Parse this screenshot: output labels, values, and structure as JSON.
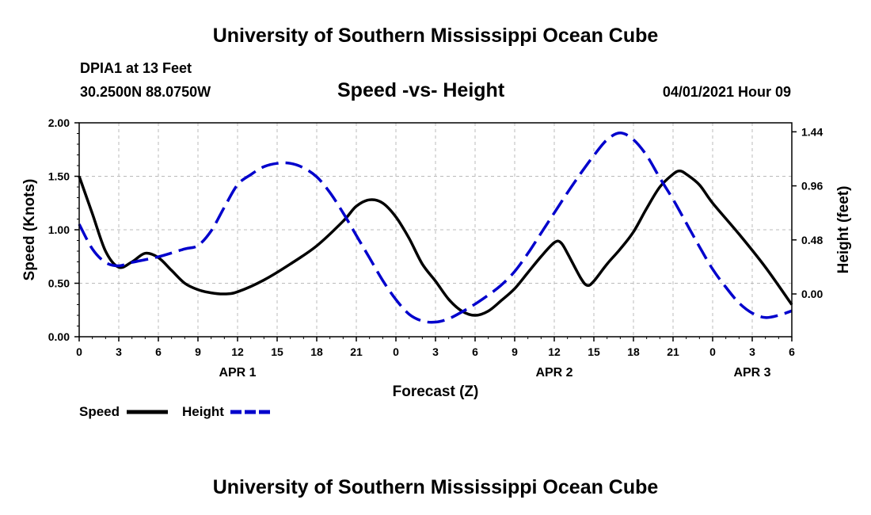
{
  "header": {
    "top_title": "University of Southern Mississippi Ocean Cube",
    "bottom_title": "University of Southern Mississippi Ocean Cube",
    "station": "DPIA1 at 13 Feet",
    "coords": "30.2500N  88.0750W",
    "subtitle": "Speed -vs- Height",
    "datetime": "04/01/2021 Hour 09"
  },
  "chart_data": {
    "type": "line",
    "xlabel": "Forecast (Z)",
    "ylabel_left": "Speed (Knots)",
    "ylabel_right": "Height (feet)",
    "x_hours_range": [
      0,
      54
    ],
    "x_tick_hours": [
      0,
      3,
      6,
      9,
      12,
      15,
      18,
      21,
      24,
      27,
      30,
      33,
      36,
      39,
      42,
      45,
      48,
      51,
      54
    ],
    "x_tick_labels": [
      "0",
      "3",
      "6",
      "9",
      "12",
      "15",
      "18",
      "21",
      "0",
      "3",
      "6",
      "9",
      "12",
      "15",
      "18",
      "21",
      "0",
      "3",
      "6"
    ],
    "date_labels": [
      {
        "label": "APR 1",
        "hour": 12
      },
      {
        "label": "APR 2",
        "hour": 36
      },
      {
        "label": "APR 3",
        "hour": 51
      }
    ],
    "ylim_left": [
      0.0,
      2.0
    ],
    "yticks_left": [
      "0.00",
      "0.50",
      "1.00",
      "1.50",
      "2.00"
    ],
    "yticks_left_values": [
      0.0,
      0.5,
      1.0,
      1.5,
      2.0
    ],
    "ylim_right": [
      -0.38,
      1.52
    ],
    "yticks_right": [
      "0.00",
      "0.48",
      "0.96",
      "1.44"
    ],
    "yticks_right_values": [
      0.0,
      0.48,
      0.96,
      1.44
    ],
    "grid": true,
    "legend": "bottom-left",
    "series": [
      {
        "name": "Speed",
        "axis": "left",
        "color": "#000000",
        "dash": "solid",
        "points": [
          [
            0,
            1.5
          ],
          [
            1,
            1.15
          ],
          [
            2,
            0.8
          ],
          [
            3,
            0.65
          ],
          [
            4,
            0.7
          ],
          [
            5,
            0.78
          ],
          [
            6,
            0.74
          ],
          [
            7,
            0.62
          ],
          [
            8,
            0.5
          ],
          [
            9,
            0.44
          ],
          [
            10,
            0.41
          ],
          [
            11,
            0.4
          ],
          [
            12,
            0.42
          ],
          [
            14,
            0.53
          ],
          [
            16,
            0.68
          ],
          [
            18,
            0.85
          ],
          [
            20,
            1.08
          ],
          [
            21,
            1.22
          ],
          [
            22,
            1.28
          ],
          [
            23,
            1.25
          ],
          [
            24,
            1.12
          ],
          [
            25,
            0.92
          ],
          [
            26,
            0.68
          ],
          [
            27,
            0.52
          ],
          [
            28,
            0.35
          ],
          [
            29,
            0.24
          ],
          [
            30,
            0.2
          ],
          [
            31,
            0.24
          ],
          [
            32,
            0.34
          ],
          [
            33,
            0.45
          ],
          [
            34,
            0.6
          ],
          [
            35,
            0.75
          ],
          [
            36,
            0.88
          ],
          [
            36.5,
            0.88
          ],
          [
            37,
            0.78
          ],
          [
            38,
            0.55
          ],
          [
            38.5,
            0.48
          ],
          [
            39,
            0.52
          ],
          [
            40,
            0.68
          ],
          [
            41,
            0.82
          ],
          [
            42,
            0.98
          ],
          [
            43,
            1.2
          ],
          [
            44,
            1.4
          ],
          [
            45,
            1.52
          ],
          [
            45.5,
            1.55
          ],
          [
            46,
            1.52
          ],
          [
            47,
            1.42
          ],
          [
            48,
            1.25
          ],
          [
            50,
            0.96
          ],
          [
            52,
            0.65
          ],
          [
            54,
            0.3
          ]
        ]
      },
      {
        "name": "Height",
        "axis": "right",
        "color": "#0000cc",
        "dash": "dashed",
        "points": [
          [
            0,
            0.62
          ],
          [
            1,
            0.4
          ],
          [
            2,
            0.28
          ],
          [
            3,
            0.25
          ],
          [
            4,
            0.28
          ],
          [
            6,
            0.33
          ],
          [
            8,
            0.4
          ],
          [
            9,
            0.43
          ],
          [
            10,
            0.56
          ],
          [
            11,
            0.77
          ],
          [
            12,
            0.97
          ],
          [
            13,
            1.06
          ],
          [
            14,
            1.13
          ],
          [
            15,
            1.16
          ],
          [
            16,
            1.16
          ],
          [
            17,
            1.12
          ],
          [
            18,
            1.04
          ],
          [
            19,
            0.9
          ],
          [
            20,
            0.72
          ],
          [
            21,
            0.52
          ],
          [
            22,
            0.32
          ],
          [
            23,
            0.12
          ],
          [
            24,
            -0.05
          ],
          [
            25,
            -0.18
          ],
          [
            26,
            -0.24
          ],
          [
            27,
            -0.25
          ],
          [
            28,
            -0.22
          ],
          [
            29,
            -0.16
          ],
          [
            30,
            -0.09
          ],
          [
            31,
            -0.01
          ],
          [
            32,
            0.08
          ],
          [
            33,
            0.2
          ],
          [
            34,
            0.36
          ],
          [
            35,
            0.54
          ],
          [
            36,
            0.72
          ],
          [
            37,
            0.9
          ],
          [
            38,
            1.07
          ],
          [
            39,
            1.23
          ],
          [
            40,
            1.37
          ],
          [
            41,
            1.43
          ],
          [
            42,
            1.37
          ],
          [
            43,
            1.23
          ],
          [
            44,
            1.03
          ],
          [
            45,
            0.84
          ],
          [
            46,
            0.63
          ],
          [
            47,
            0.42
          ],
          [
            48,
            0.22
          ],
          [
            49,
            0.06
          ],
          [
            50,
            -0.08
          ],
          [
            51,
            -0.17
          ],
          [
            52,
            -0.21
          ],
          [
            53,
            -0.19
          ],
          [
            54,
            -0.15
          ]
        ]
      }
    ],
    "legend_entries": [
      "Speed",
      "Height"
    ]
  }
}
